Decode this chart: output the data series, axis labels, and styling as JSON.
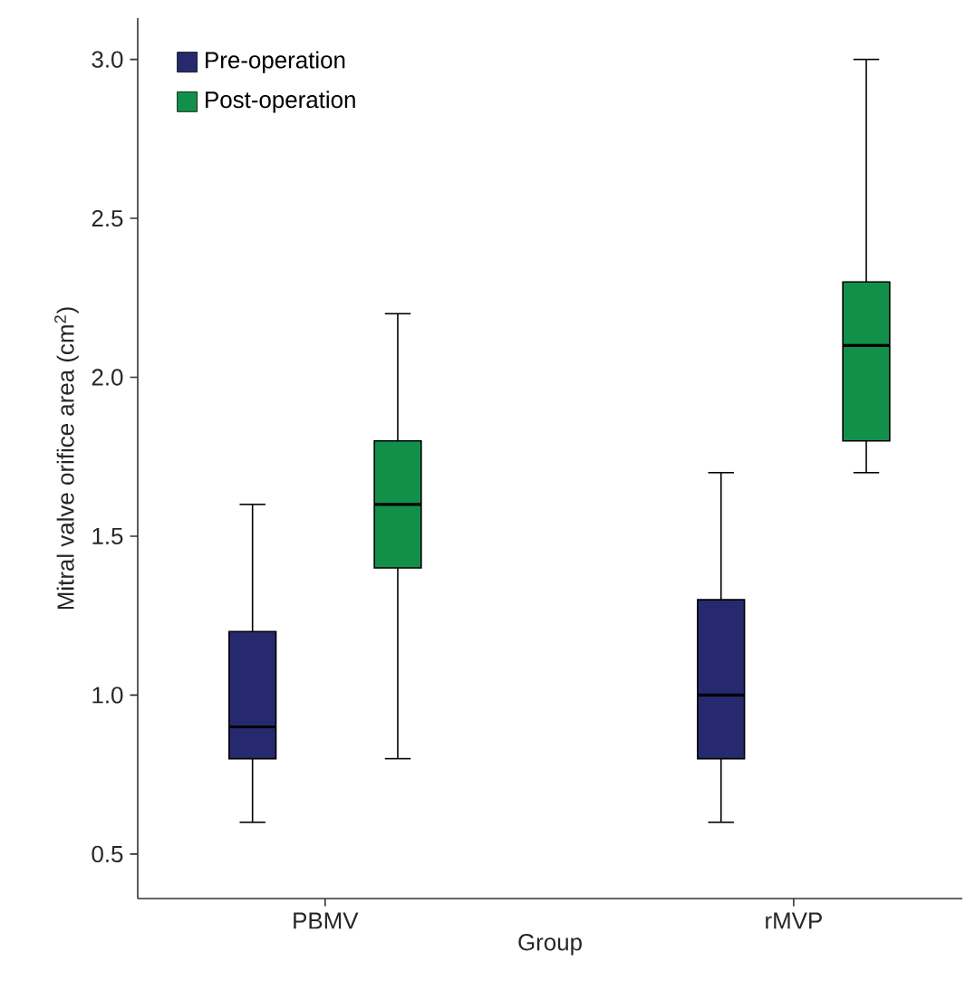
{
  "chart_data": {
    "type": "box",
    "xlabel": "Group",
    "ylabel": "Mitral valve orifice area (cm$^{2}$)",
    "categories": [
      "PBMV",
      "rMVP"
    ],
    "series": [
      {
        "name": "Pre-operation",
        "color": "#27296f",
        "boxes": [
          {
            "low": 0.6,
            "q1": 0.8,
            "median": 0.9,
            "q3": 1.2,
            "high": 1.6
          },
          {
            "low": 0.6,
            "q1": 0.8,
            "median": 1.0,
            "q3": 1.3,
            "high": 1.7
          }
        ]
      },
      {
        "name": "Post-operation",
        "color": "#12904a",
        "boxes": [
          {
            "low": 0.8,
            "q1": 1.4,
            "median": 1.6,
            "q3": 1.8,
            "high": 2.2
          },
          {
            "low": 1.7,
            "q1": 1.8,
            "median": 2.1,
            "q3": 2.3,
            "high": 3.0
          }
        ]
      }
    ],
    "ylim": [
      0.36,
      3.13
    ],
    "yticks": [
      0.5,
      {
        "value": 1.0,
        "label": "1.0"
      },
      1.5,
      {
        "value": 2.0,
        "label": "2.0"
      },
      2.5,
      {
        "value": 3.0,
        "label": "3.0"
      }
    ],
    "legend": "top left"
  }
}
